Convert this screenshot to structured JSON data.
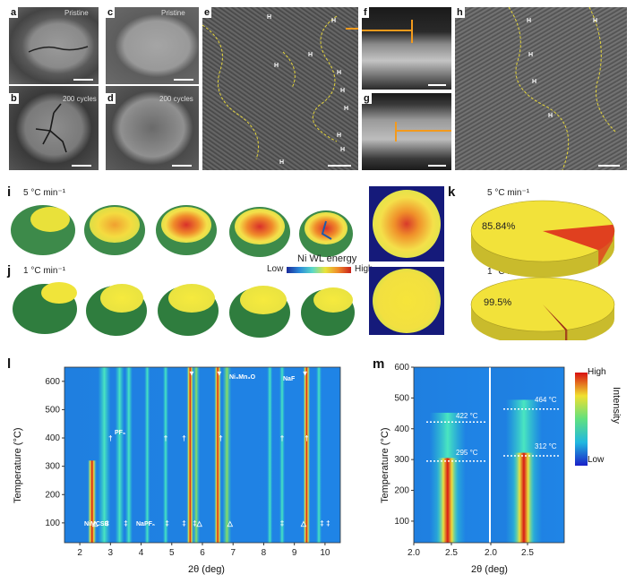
{
  "panels": {
    "a": {
      "label": "a",
      "caption": "Pristine"
    },
    "b": {
      "label": "b",
      "caption": "200 cycles"
    },
    "c": {
      "label": "c",
      "caption": "Pristine"
    },
    "d": {
      "label": "d",
      "caption": "200 cycles"
    },
    "e": {
      "label": "e",
      "marks": [
        "H",
        "H",
        "H",
        "H",
        "H",
        "H",
        "H",
        "H",
        "H",
        "H"
      ]
    },
    "f": {
      "label": "f"
    },
    "g": {
      "label": "g"
    },
    "h": {
      "label": "h",
      "marks": [
        "H",
        "H",
        "H",
        "H",
        "H"
      ]
    },
    "i": {
      "label": "i",
      "rate": "5 °C min⁻¹"
    },
    "j": {
      "label": "j",
      "rate": "1 °C min⁻¹"
    },
    "k": {
      "label": "k"
    },
    "l": {
      "label": "l"
    },
    "m": {
      "label": "m"
    }
  },
  "legend_ni": {
    "title": "Ni WL energy",
    "low": "Low",
    "high": "High"
  },
  "pies": [
    {
      "rate": "5 °C min⁻¹",
      "value_label": "85.84%",
      "fraction": 0.8584,
      "main_color": "#f2e23a",
      "minor_color": "#e0401f"
    },
    {
      "rate": "1 °C min⁻¹",
      "value_label": "99.5%",
      "fraction": 0.995,
      "main_color": "#f2e23a",
      "minor_color": "#9b2a18"
    }
  ],
  "chart_data": [
    {
      "type": "heatmap",
      "panel": "l",
      "xlabel": "2θ (deg)",
      "ylabel": "Temperature (°C)",
      "xlim": [
        1.5,
        10.5
      ],
      "ylim": [
        30,
        650
      ],
      "xticks": [
        "2",
        "3",
        "4",
        "5",
        "6",
        "7",
        "8",
        "9",
        "10"
      ],
      "yticks": [
        "100",
        "200",
        "300",
        "400",
        "500",
        "600"
      ],
      "annotations": [
        "NiMCSB",
        "PF₆",
        "NaPF₆",
        "Ni₃Mn₃O",
        "NaF"
      ],
      "symbols": [
        "†",
        "‡",
        "△",
        "▼"
      ]
    },
    {
      "type": "heatmap",
      "panel": "m",
      "xlabel": "2θ (deg)",
      "ylabel": "Temperature (°C)",
      "xlim": [
        2.0,
        3.0
      ],
      "ylim": [
        30,
        600
      ],
      "xticks": [
        "2.0",
        "2.5",
        "2.0",
        "2.5"
      ],
      "yticks": [
        "100",
        "200",
        "300",
        "400",
        "500",
        "600"
      ],
      "subpanels": [
        {
          "onset": "295 °C",
          "end": "422 °C"
        },
        {
          "onset": "312 °C",
          "end": "464 °C"
        }
      ],
      "colorbar": {
        "title": "Intensity",
        "high": "High",
        "low": "Low"
      }
    }
  ]
}
